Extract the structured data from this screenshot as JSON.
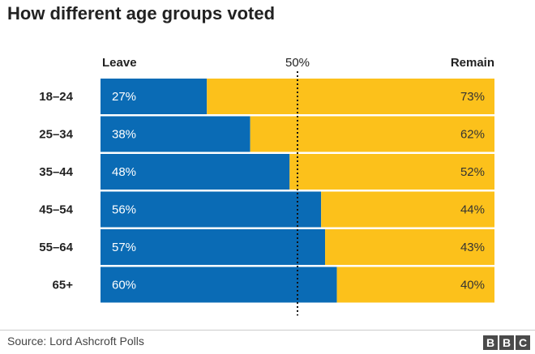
{
  "title": "How different age groups voted",
  "source": "Source: Lord Ashcroft Polls",
  "logo_letters": [
    "B",
    "B",
    "C"
  ],
  "colors": {
    "leave": "#0a6bb5",
    "remain": "#fcc11b",
    "text_on_bar": "#ffffff",
    "text_on_remain": "#333333"
  },
  "chart_data": {
    "type": "bar",
    "orientation": "horizontal",
    "stacked": true,
    "categories": [
      "18–24",
      "25–34",
      "35–44",
      "45–54",
      "55–64",
      "65+"
    ],
    "series": [
      {
        "name": "Leave",
        "values": [
          27,
          38,
          48,
          56,
          57,
          60
        ]
      },
      {
        "name": "Remain",
        "values": [
          73,
          62,
          52,
          44,
          43,
          40
        ]
      }
    ],
    "value_labels": {
      "Leave": [
        "27%",
        "38%",
        "48%",
        "56%",
        "57%",
        "60%"
      ],
      "Remain": [
        "73%",
        "62%",
        "52%",
        "44%",
        "43%",
        "40%"
      ]
    },
    "reference_line": {
      "value": 50,
      "label": "50%",
      "style": "dotted"
    },
    "xlim": [
      0,
      100
    ],
    "legend": "top"
  }
}
